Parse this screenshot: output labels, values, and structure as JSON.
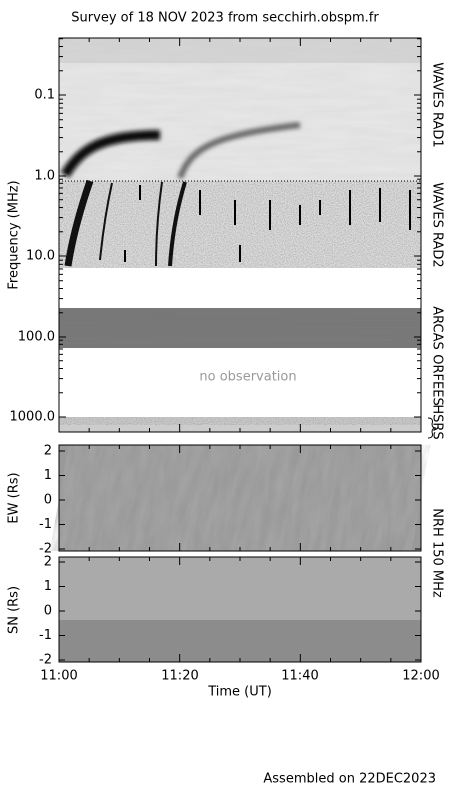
{
  "header": {
    "title": "Survey of 18 NOV 2023 from secchirh.obspm.fr"
  },
  "frequency_panel": {
    "axis_label": "Frequency (MHz)",
    "ticks": [
      "0.1",
      "1.0",
      "10.0",
      "100.0",
      "1000.0"
    ],
    "instruments": [
      "WAVES RAD1",
      "WAVES RAD2",
      "ARCAS",
      "ORFEES",
      "HSRS"
    ],
    "note": "no observation"
  },
  "ew_panel": {
    "axis_label": "EW (Rs)",
    "ticks": [
      "2",
      "1",
      "0",
      "-1",
      "-2"
    ]
  },
  "sn_panel": {
    "axis_label": "SN (Rs)",
    "ticks": [
      "2",
      "1",
      "0",
      "-1",
      "-2"
    ]
  },
  "nrh_label": "NRH 150 MHz",
  "time_axis": {
    "label": "Time (UT)",
    "ticks": [
      "11:00",
      "11:20",
      "11:40",
      "12:00"
    ]
  },
  "footer": "Assembled on 22DEC2023"
}
